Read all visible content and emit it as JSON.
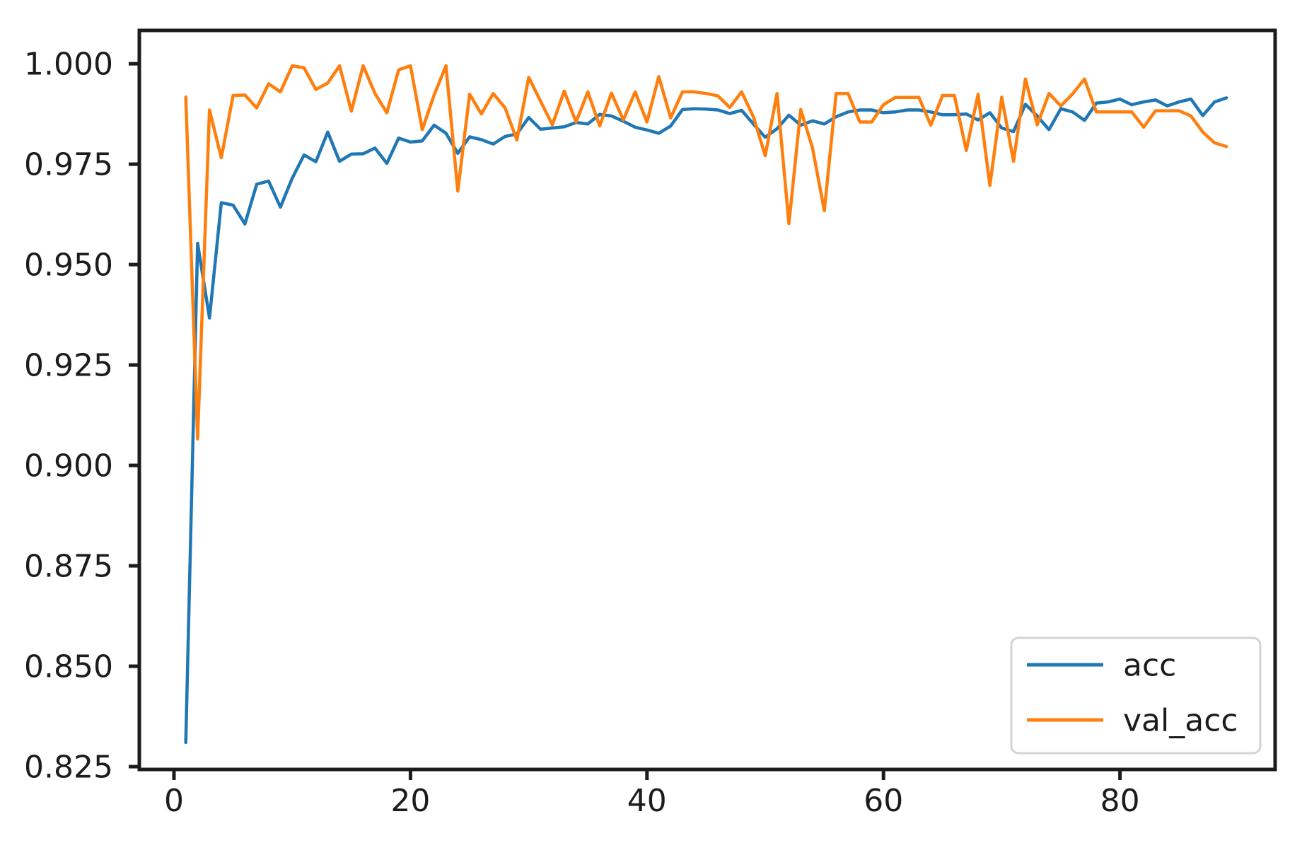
{
  "figure": {
    "background": "#ffffff",
    "spine_color": "#1c1c1c",
    "tick_color": "#1c1c1c",
    "tick_label_color": "#1c1c1c",
    "legend_border_color": "#d4d4d4",
    "legend_background": "#ffffff"
  },
  "chart_data": {
    "type": "line",
    "title": "",
    "xlabel": "",
    "ylabel": "",
    "grid": false,
    "legend_position": "lower right",
    "xlim": [
      -2.93,
      93.12
    ],
    "ylim": [
      0.8243,
      1.0083
    ],
    "x_ticks": {
      "values": [
        0,
        20,
        40,
        60,
        80
      ],
      "labels": [
        "0",
        "20",
        "40",
        "60",
        "80"
      ]
    },
    "y_ticks": {
      "values": [
        1.0,
        0.975,
        0.95,
        0.925,
        0.9,
        0.875,
        0.85,
        0.825
      ],
      "labels": [
        "1.000",
        "0.975",
        "0.950",
        "0.925",
        "0.900",
        "0.875",
        "0.850",
        "0.825"
      ]
    },
    "x": [
      1,
      2,
      3,
      4,
      5,
      6,
      7,
      8,
      9,
      10,
      11,
      12,
      13,
      14,
      15,
      16,
      17,
      18,
      19,
      20,
      21,
      22,
      23,
      24,
      25,
      26,
      27,
      28,
      29,
      30,
      31,
      32,
      33,
      34,
      35,
      36,
      37,
      38,
      39,
      40,
      41,
      42,
      43,
      44,
      45,
      46,
      47,
      48,
      49,
      50,
      51,
      52,
      53,
      54,
      55,
      56,
      57,
      58,
      59,
      60,
      61,
      62,
      63,
      64,
      65,
      66,
      67,
      68,
      69,
      70,
      71,
      72,
      73,
      74,
      75,
      76,
      77,
      78,
      79,
      80,
      81,
      82,
      83,
      84,
      85,
      86,
      87,
      88,
      89
    ],
    "series": [
      {
        "name": "acc",
        "color": "#1f77b4",
        "values": [
          0.831,
          0.9553,
          0.9367,
          0.9654,
          0.9648,
          0.9601,
          0.97,
          0.9708,
          0.9643,
          0.9715,
          0.9773,
          0.9756,
          0.983,
          0.9757,
          0.9775,
          0.9776,
          0.979,
          0.9752,
          0.9815,
          0.9805,
          0.9808,
          0.9847,
          0.9827,
          0.9777,
          0.9818,
          0.9811,
          0.98,
          0.9819,
          0.9825,
          0.9866,
          0.9837,
          0.984,
          0.9843,
          0.9854,
          0.985,
          0.9874,
          0.987,
          0.9857,
          0.9842,
          0.9835,
          0.9827,
          0.9845,
          0.9886,
          0.9888,
          0.9887,
          0.9885,
          0.9876,
          0.9884,
          0.985,
          0.9817,
          0.9838,
          0.9872,
          0.9847,
          0.9858,
          0.985,
          0.9868,
          0.988,
          0.9885,
          0.9885,
          0.9878,
          0.988,
          0.9885,
          0.9885,
          0.988,
          0.9873,
          0.9873,
          0.9875,
          0.986,
          0.9878,
          0.984,
          0.9831,
          0.9899,
          0.987,
          0.9836,
          0.9888,
          0.988,
          0.9859,
          0.9902,
          0.9905,
          0.9912,
          0.9898,
          0.9905,
          0.991,
          0.9895,
          0.9905,
          0.9912,
          0.9871,
          0.9905,
          0.9915
        ]
      },
      {
        "name": "val_acc",
        "color": "#ff7f0e",
        "values": [
          0.9917,
          0.9066,
          0.9885,
          0.9766,
          0.9921,
          0.9922,
          0.989,
          0.995,
          0.993,
          0.9995,
          0.999,
          0.9936,
          0.9952,
          0.9995,
          0.9882,
          0.9995,
          0.9926,
          0.9878,
          0.9985,
          0.9995,
          0.9836,
          0.9922,
          0.9995,
          0.9683,
          0.9924,
          0.9875,
          0.9926,
          0.989,
          0.981,
          0.9966,
          0.9907,
          0.9848,
          0.9932,
          0.9855,
          0.993,
          0.9845,
          0.9927,
          0.986,
          0.993,
          0.9855,
          0.9968,
          0.9865,
          0.993,
          0.993,
          0.9926,
          0.992,
          0.9891,
          0.993,
          0.9868,
          0.9771,
          0.9926,
          0.9602,
          0.9886,
          0.979,
          0.9634,
          0.9926,
          0.9926,
          0.9855,
          0.9855,
          0.9898,
          0.9916,
          0.9916,
          0.9916,
          0.9847,
          0.9921,
          0.9921,
          0.9784,
          0.9924,
          0.9697,
          0.9917,
          0.9757,
          0.9962,
          0.9848,
          0.9926,
          0.9895,
          0.9925,
          0.9962,
          0.988,
          0.988,
          0.988,
          0.988,
          0.9842,
          0.9883,
          0.9883,
          0.9883,
          0.987,
          0.983,
          0.9803,
          0.9794
        ]
      }
    ],
    "legend_entries": [
      "acc",
      "val_acc"
    ]
  }
}
